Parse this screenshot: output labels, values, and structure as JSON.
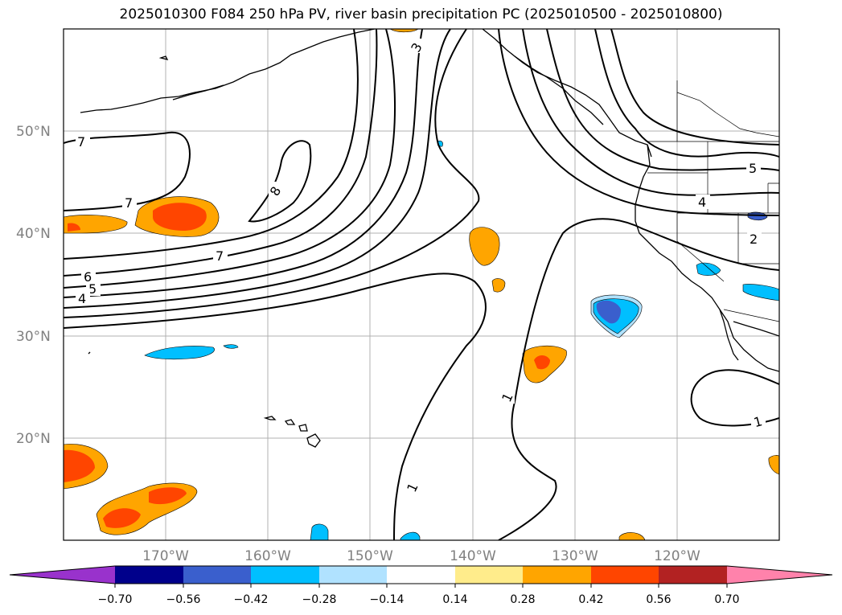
{
  "title": "2025010300 F084 250 hPa PV, river basin precipitation PC (2025010500 - 2025010800)",
  "map": {
    "lat_labels": [
      "50°N",
      "40°N",
      "30°N",
      "20°N"
    ],
    "lon_labels": [
      "170°W",
      "160°W",
      "150°W",
      "140°W",
      "130°W",
      "120°W"
    ],
    "contour_labels": [
      "7",
      "7",
      "7",
      "8",
      "6",
      "5",
      "4",
      "3",
      "1",
      "1",
      "1",
      "5",
      "4",
      "2"
    ],
    "contour_color": "#000000",
    "grid_color": "#b0b0b0",
    "coast_color": "#000000"
  },
  "colorbar": {
    "colors": [
      "#9932cc",
      "#00008b",
      "#3a5fcd",
      "#00bfff",
      "#b0e2ff",
      "#ffffff",
      "#ffec8b",
      "#ffa500",
      "#ff4500",
      "#b22222",
      "#ff82ab"
    ],
    "tick_labels": [
      "−0.70",
      "−0.56",
      "−0.42",
      "−0.28",
      "−0.14",
      "0.14",
      "0.28",
      "0.42",
      "0.56",
      "0.70"
    ],
    "extend": "both"
  },
  "colors": {
    "pos_light": "#ffa500",
    "pos_mid": "#ff4500",
    "pos_pale": "#ffec8b",
    "neg_light": "#00bfff",
    "neg_mid": "#3a5fcd",
    "neg_pale": "#b0e2ff"
  }
}
